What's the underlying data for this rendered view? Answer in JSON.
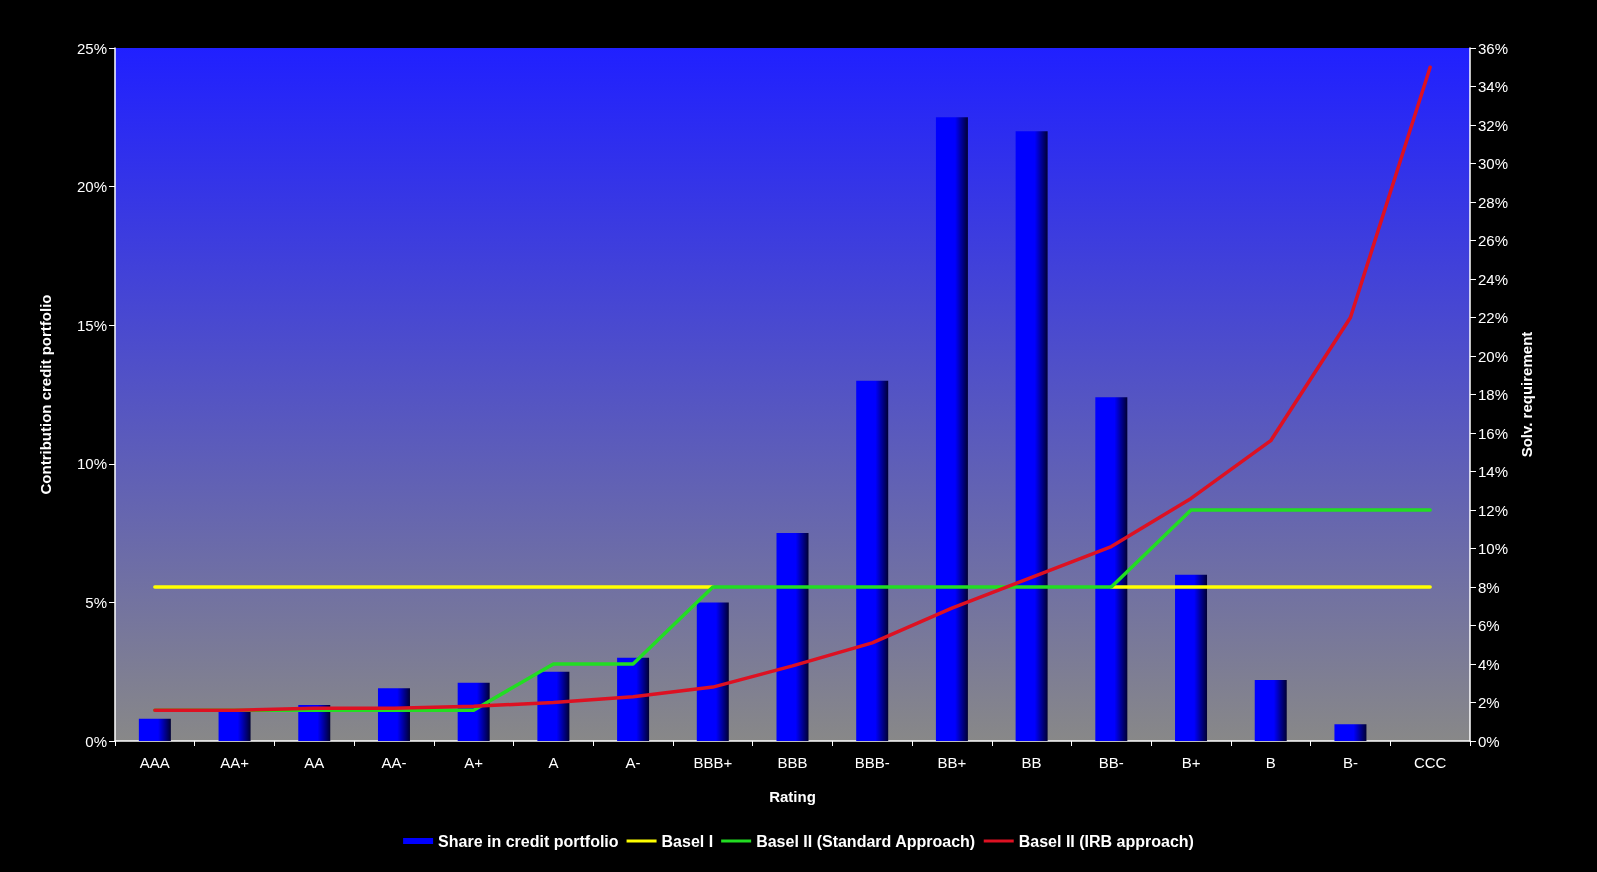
{
  "chart_data": {
    "type": "bar",
    "xlabel": "Rating",
    "ylabel": "Contribution credit portfolio",
    "y2label": "Solv. requirement",
    "categories": [
      "AAA",
      "AA+",
      "AA",
      "AA-",
      "A+",
      "A",
      "A-",
      "BBB+",
      "BBB",
      "BBB-",
      "BB+",
      "BB",
      "BB-",
      "B+",
      "B",
      "B-",
      "CCC"
    ],
    "series": [
      {
        "name": "Share in credit portfolio",
        "color": "#0000ff",
        "values": [
          0.8,
          1.1,
          1.3,
          1.9,
          2.1,
          2.5,
          3.0,
          5.0,
          7.5,
          13.0,
          22.5,
          22.0,
          12.4,
          6.0,
          2.2,
          0.6,
          0
        ]
      },
      {
        "name": "Basel I",
        "type": "line",
        "axis": "y2",
        "color": "#ffff00",
        "values": [
          8,
          8,
          8,
          8,
          8,
          8,
          8,
          8,
          null,
          null,
          null,
          null,
          8,
          8,
          8,
          8,
          8
        ]
      },
      {
        "name": "Basel II (Standard Approach)",
        "type": "line",
        "axis": "y2",
        "color": "#22dd22",
        "values": [
          1.6,
          1.6,
          1.6,
          1.6,
          1.6,
          4,
          4,
          8,
          8,
          8,
          8,
          8,
          8,
          12,
          12,
          12,
          12
        ]
      },
      {
        "name": "Basel II (IRB approach)",
        "type": "line",
        "axis": "y2",
        "color": "#dd1122",
        "values": [
          1.6,
          1.6,
          1.7,
          1.7,
          1.8,
          2.0,
          2.3,
          2.8,
          3.9,
          5.1,
          6.9,
          8.5,
          10.1,
          12.6,
          15.6,
          22.0,
          35.0
        ]
      }
    ],
    "ylim": [
      0,
      25
    ],
    "yticks": [
      {
        "value": 0,
        "label": "0%"
      },
      {
        "value": 5,
        "label": "5%"
      },
      {
        "value": 10,
        "label": "10%"
      },
      {
        "value": 15,
        "label": "15%"
      },
      {
        "value": 20,
        "label": "20%"
      },
      {
        "value": 25,
        "label": "25%"
      }
    ],
    "y2lim": [
      0,
      36
    ],
    "y2ticks": [
      {
        "value": 0,
        "label": "0%"
      },
      {
        "value": 2,
        "label": "2%"
      },
      {
        "value": 4,
        "label": "4%"
      },
      {
        "value": 6,
        "label": "6%"
      },
      {
        "value": 8,
        "label": "8%"
      },
      {
        "value": 10,
        "label": "10%"
      },
      {
        "value": 12,
        "label": "12%"
      },
      {
        "value": 14,
        "label": "14%"
      },
      {
        "value": 16,
        "label": "16%"
      },
      {
        "value": 18,
        "label": "18%"
      },
      {
        "value": 20,
        "label": "20%"
      },
      {
        "value": 22,
        "label": "22%"
      },
      {
        "value": 24,
        "label": "24%"
      },
      {
        "value": 26,
        "label": "26%"
      },
      {
        "value": 28,
        "label": "28%"
      },
      {
        "value": 30,
        "label": "30%"
      },
      {
        "value": 32,
        "label": "32%"
      },
      {
        "value": 34,
        "label": "34%"
      },
      {
        "value": 36,
        "label": "36%"
      }
    ],
    "grid": false,
    "legend": "bottom",
    "marker": "none",
    "line_style": "solid"
  }
}
